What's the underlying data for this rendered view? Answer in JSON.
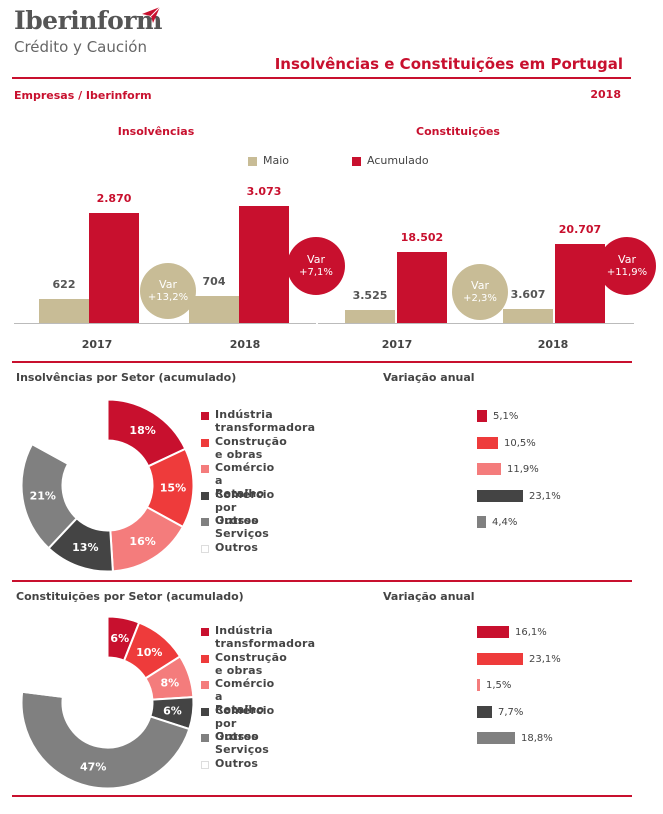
{
  "header": {
    "logo_main": "Iberinform",
    "logo_sub": "Crédito y Caución",
    "title": "Insolvências e Constituições em Portugal",
    "subtitle": "Empresas / Iberinform",
    "year": "2018"
  },
  "colors": {
    "accent": "#c8102e",
    "maio": "#c8bc96",
    "acumulado": "#c8102e"
  },
  "legend": {
    "maio": "Maio",
    "acumulado": "Acumulado"
  },
  "chart_data": [
    {
      "type": "bar",
      "title": "Insolvências",
      "categories": [
        "2017",
        "2018"
      ],
      "series": [
        {
          "name": "Maio",
          "values": [
            622,
            704
          ],
          "labels": [
            "622",
            "704"
          ],
          "color": "#c8bc96"
        },
        {
          "name": "Acumulado",
          "values": [
            2870,
            3073
          ],
          "labels": [
            "2.870",
            "3.073"
          ],
          "color": "#c8102e"
        }
      ],
      "ylim": [
        0,
        3400
      ],
      "badges": [
        {
          "line1": "Var",
          "line2": "+13,2%",
          "color": "#c8bc96"
        },
        {
          "line1": "Var",
          "line2": "+7,1%",
          "color": "#c8102e"
        }
      ]
    },
    {
      "type": "bar",
      "title": "Constituições",
      "categories": [
        "2017",
        "2018"
      ],
      "series": [
        {
          "name": "Maio",
          "values": [
            3525,
            3607
          ],
          "labels": [
            "3.525",
            "3.607"
          ],
          "color": "#c8bc96"
        },
        {
          "name": "Acumulado",
          "values": [
            18502,
            20707
          ],
          "labels": [
            "18.502",
            "20.707"
          ],
          "color": "#c8102e"
        }
      ],
      "ylim": [
        0,
        34000
      ],
      "badges": [
        {
          "line1": "Var",
          "line2": "+2,3%",
          "color": "#c8bc96"
        },
        {
          "line1": "Var",
          "line2": "+11,9%",
          "color": "#c8102e"
        }
      ]
    },
    {
      "type": "pie",
      "title": "Insolvências por Setor (acumulado)",
      "var_title": "Variação anual",
      "slices": [
        {
          "name": "Indústria transformadora",
          "value": 18,
          "label": "18%",
          "color": "#c8102e",
          "var": 5.1,
          "var_label": "5,1%"
        },
        {
          "name": "Construção e obras",
          "value": 15,
          "label": "15%",
          "color": "#ee3b3b",
          "var": 10.5,
          "var_label": "10,5%"
        },
        {
          "name": "Comércio a Retalho",
          "value": 16,
          "label": "16%",
          "color": "#f47c7c",
          "var": 11.9,
          "var_label": "11,9%"
        },
        {
          "name": "Comércio por Grosso",
          "value": 13,
          "label": "13%",
          "color": "#444444",
          "var": 23.1,
          "var_label": "23,1%"
        },
        {
          "name": "Outros Serviços",
          "value": 21,
          "label": "21%",
          "color": "#808080",
          "var": 4.4,
          "var_label": "4,4%"
        },
        {
          "name": "Outros",
          "value": 17,
          "label": "",
          "color": "#ffffff",
          "var": null,
          "var_label": ""
        }
      ]
    },
    {
      "type": "pie",
      "title": "Constituições por Setor (acumulado)",
      "var_title": "Variação anual",
      "slices": [
        {
          "name": "Indústria transformadora",
          "value": 6,
          "label": "6%",
          "color": "#c8102e",
          "var": 16.1,
          "var_label": "16,1%"
        },
        {
          "name": "Construção e obras",
          "value": 10,
          "label": "10%",
          "color": "#ee3b3b",
          "var": 23.1,
          "var_label": "23,1%"
        },
        {
          "name": "Comércio a Retalho",
          "value": 8,
          "label": "8%",
          "color": "#f47c7c",
          "var": 1.5,
          "var_label": "1,5%"
        },
        {
          "name": "Comércio por Grosso",
          "value": 6,
          "label": "6%",
          "color": "#444444",
          "var": 7.7,
          "var_label": "7,7%"
        },
        {
          "name": "Outros Serviços",
          "value": 47,
          "label": "47%",
          "color": "#808080",
          "var": 18.8,
          "var_label": "18,8%"
        },
        {
          "name": "Outros",
          "value": 23,
          "label": "",
          "color": "#ffffff",
          "var": null,
          "var_label": ""
        }
      ]
    }
  ]
}
